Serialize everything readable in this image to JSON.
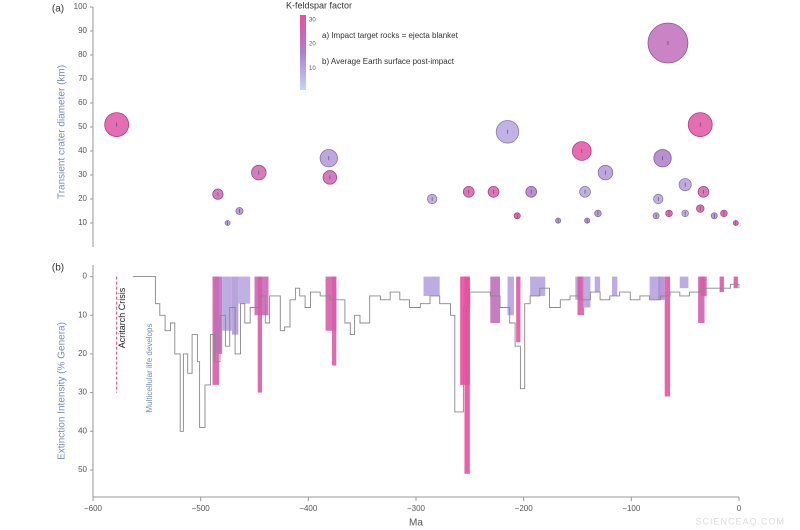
{
  "chart_data": [
    {
      "type": "bubble",
      "panel_label": "(a)",
      "y_label": "Transient crater diameter (km)",
      "x": [
        -578,
        -484,
        -475,
        -464,
        -446,
        -381,
        -380,
        -285,
        -251,
        -228,
        -215,
        -206,
        -193,
        -168,
        -146,
        -143,
        -141,
        -131,
        -124,
        -77,
        -75,
        -71,
        -66,
        -65,
        -50,
        -50,
        -36,
        -36,
        -33,
        -23,
        -14,
        -3
      ],
      "y": [
        51,
        22,
        10,
        15,
        31,
        37,
        29,
        20,
        23,
        23,
        48,
        13,
        23,
        11,
        40,
        23,
        11,
        14,
        31,
        13,
        20,
        37,
        85,
        14,
        14,
        26,
        51,
        16,
        23,
        13,
        14,
        10
      ],
      "color_values": [
        30,
        24,
        12,
        14,
        25,
        12,
        25,
        10,
        27,
        26,
        10,
        30,
        18,
        14,
        30,
        10,
        15,
        14,
        12,
        12,
        10,
        17,
        22,
        30,
        10,
        11,
        30,
        28,
        26,
        14,
        28,
        29
      ],
      "xlim": [
        -600,
        0
      ],
      "ylim": [
        0,
        100
      ],
      "yticks": [
        10,
        20,
        30,
        40,
        50,
        60,
        70,
        80,
        90,
        100
      ],
      "colorbar": {
        "title": "K-feldspar factor",
        "clim": [
          1,
          32
        ],
        "ticks": [
          10,
          20,
          30
        ],
        "colors": [
          "#c6d5f7",
          "#ab7fcd",
          "#e94f9e"
        ],
        "notes": [
          "a) Impact target rocks = ejecta blanket",
          "b) Average Earth surface post-impact"
        ]
      }
    },
    {
      "type": "step",
      "panel_label": "(b)",
      "x_label": "Ma",
      "y_label": "Extinction Intensity (% Genera)",
      "x": [
        -563,
        -542,
        -538,
        -533,
        -528,
        -524,
        -519,
        -516,
        -512,
        -508,
        -503,
        -501,
        -496,
        -491,
        -487,
        -482,
        -477,
        -473,
        -468,
        -463,
        -459,
        -454,
        -445,
        -440,
        -436,
        -426,
        -422,
        -417,
        -412,
        -408,
        -403,
        -398,
        -389,
        -380,
        -371,
        -366,
        -361,
        -357,
        -352,
        -343,
        -333,
        -324,
        -315,
        -306,
        -296,
        -287,
        -278,
        -268,
        -264,
        -256,
        -250,
        -241,
        -231,
        -222,
        -213,
        -208,
        -203,
        -199,
        -194,
        -185,
        -176,
        -166,
        -157,
        -148,
        -138,
        -129,
        -120,
        -111,
        -101,
        -92,
        -83,
        -73,
        -64,
        -55,
        -46,
        -36,
        -27,
        -18,
        -8,
        0
      ],
      "values": [
        0,
        7,
        10,
        14,
        12,
        20,
        40,
        20,
        25,
        15,
        22,
        39,
        28,
        15,
        22,
        10,
        18,
        8,
        20,
        7,
        12,
        8,
        5,
        12,
        5,
        14,
        13,
        6,
        3,
        5,
        8,
        4,
        5,
        6,
        6,
        12,
        15,
        10,
        12,
        5,
        6,
        4,
        6,
        8,
        7,
        5,
        7,
        10,
        35,
        8,
        4,
        4,
        5,
        8,
        12,
        18,
        29,
        7,
        5,
        3,
        8,
        6,
        5,
        6,
        4,
        6,
        5,
        4,
        6,
        5,
        6,
        5,
        4,
        5,
        4,
        3,
        3,
        3,
        2,
        3
      ],
      "color": "#888888",
      "bars": {
        "x_start": [
          -489,
          -487,
          -480,
          -471,
          -465,
          -450,
          -447,
          -384,
          -378,
          -293,
          -259,
          -255,
          -231,
          -215,
          -207,
          -194,
          -152,
          -150,
          -145,
          -134,
          -118,
          -83,
          -75,
          -69,
          -55,
          -38,
          -36,
          -18,
          -5
        ],
        "x_end": [
          -483,
          -480,
          -471,
          -465,
          -454,
          -437,
          -443,
          -374,
          -374,
          -278,
          -250,
          -250,
          -222,
          -209,
          -203,
          -180,
          -146,
          -144,
          -138,
          -129,
          -113,
          -73,
          -69,
          -64,
          -47,
          -32,
          -30,
          -14,
          -1
        ],
        "values": [
          28,
          20,
          14,
          15,
          7,
          10,
          30,
          14,
          23,
          5,
          28,
          51,
          12,
          10,
          17,
          5,
          6,
          10,
          8,
          4,
          5,
          6,
          6,
          31,
          3,
          12,
          5,
          4,
          3
        ],
        "color_values": [
          28,
          22,
          10,
          12,
          9,
          24,
          28,
          27,
          28,
          10,
          32,
          32,
          22,
          10,
          30,
          10,
          11,
          28,
          10,
          10,
          10,
          10,
          14,
          30,
          10,
          26,
          28,
          30,
          30
        ]
      },
      "xlim": [
        -600,
        0
      ],
      "xticks": [
        {
          "value": -600,
          "label": "−600"
        },
        {
          "value": -500,
          "label": "−500"
        },
        {
          "value": -400,
          "label": "−400"
        },
        {
          "value": -300,
          "label": "−300"
        },
        {
          "value": -200,
          "label": "−200"
        },
        {
          "value": -100,
          "label": "−100"
        },
        0
      ],
      "ylim": [
        -3,
        57
      ],
      "yticks": [
        0,
        10,
        20,
        30,
        40,
        50
      ],
      "inverted": true,
      "annotations": [
        {
          "text": "Acritarch Crisis",
          "x": -578,
          "y_end": 30,
          "color": "#d2427a"
        },
        {
          "text": "Multicellular life develops",
          "x": -563
        }
      ]
    }
  ],
  "watermark": "SCIENCEAQ.COM"
}
